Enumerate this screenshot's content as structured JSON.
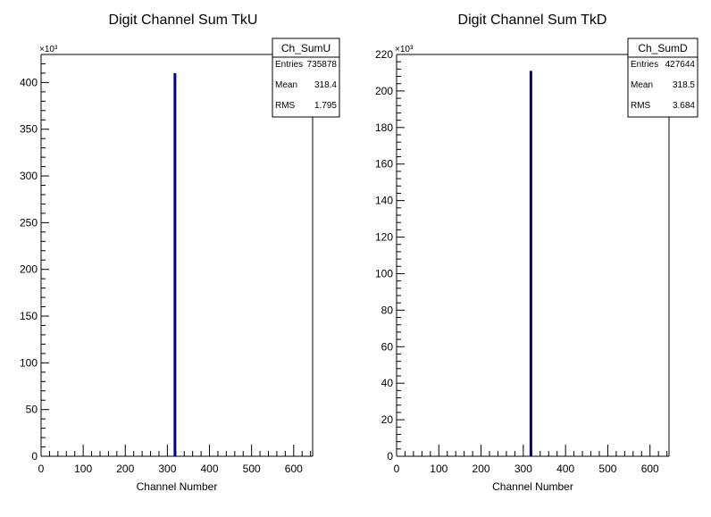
{
  "chart_data": [
    {
      "type": "bar",
      "title": "Digit Channel Sum TkU",
      "xlabel": "Channel Number",
      "ylabel": "",
      "exponent_label": "×10³",
      "xlim": [
        0,
        645
      ],
      "ylim": [
        0,
        430
      ],
      "xticks": [
        0,
        100,
        200,
        300,
        400,
        500,
        600
      ],
      "yticks": [
        0,
        50,
        100,
        150,
        200,
        250,
        300,
        350,
        400
      ],
      "grid": false,
      "series": [
        {
          "x": [
            318
          ],
          "values": [
            410
          ]
        }
      ],
      "stats": {
        "name": "Ch_SumU",
        "rows": [
          {
            "label": "Entries",
            "value": "735878"
          },
          {
            "label": "Mean",
            "value": "318.4"
          },
          {
            "label": "RMS",
            "value": "1.795"
          }
        ]
      }
    },
    {
      "type": "bar",
      "title": "Digit Channel Sum TkD",
      "xlabel": "Channel Number",
      "ylabel": "",
      "exponent_label": "×10³",
      "xlim": [
        0,
        645
      ],
      "ylim": [
        0,
        220
      ],
      "xticks": [
        0,
        100,
        200,
        300,
        400,
        500,
        600
      ],
      "yticks": [
        0,
        20,
        40,
        60,
        80,
        100,
        120,
        140,
        160,
        180,
        200,
        220
      ],
      "grid": false,
      "series": [
        {
          "x": [
            318
          ],
          "values": [
            211
          ]
        }
      ],
      "stats": {
        "name": "Ch_SumD",
        "rows": [
          {
            "label": "Entries",
            "value": "427644"
          },
          {
            "label": "Mean",
            "value": "318.5"
          },
          {
            "label": "RMS",
            "value": "3.684"
          }
        ]
      }
    }
  ],
  "colors": {
    "histogram_line": "#000080",
    "axis": "#000000",
    "background": "#ffffff"
  }
}
